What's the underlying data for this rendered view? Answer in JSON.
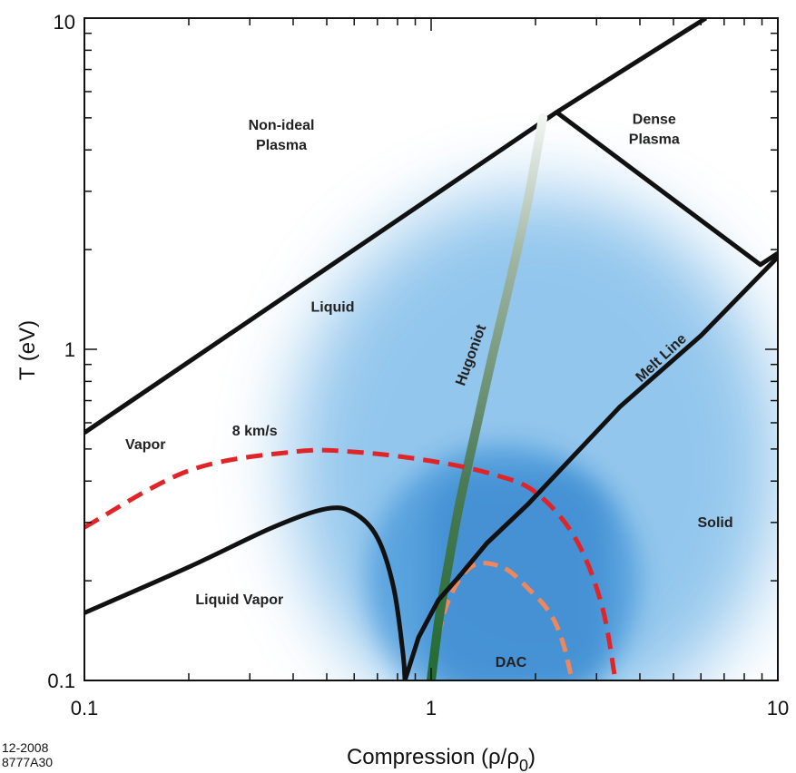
{
  "chart_data": {
    "type": "line",
    "xscale": "log",
    "yscale": "log",
    "xlim": [
      0.1,
      10
    ],
    "ylim": [
      0.1,
      10
    ],
    "xticks": [
      "0.1",
      "1",
      "10"
    ],
    "yticks": [
      "0.1",
      "1",
      "10"
    ],
    "xlabel": "Compression  (ρ/ρ",
    "xlabel_sub": "0",
    "xlabel_end": ")",
    "ylabel": "T  (eV)",
    "grid": false,
    "regions": [
      {
        "label": "Non-ideal",
        "label2": "Plasma",
        "x": 0.37,
        "y": 4.6
      },
      {
        "label": "Dense",
        "label2": "Plasma",
        "x": 4.4,
        "y": 4.8
      },
      {
        "label": "Liquid",
        "x": 0.52,
        "y": 1.3
      },
      {
        "label": "Vapor",
        "x": 0.15,
        "y": 0.5
      },
      {
        "label": "Solid",
        "x": 6.6,
        "y": 0.29
      },
      {
        "label": "Liquid Vapor",
        "x": 0.28,
        "y": 0.17
      },
      {
        "label": "DAC",
        "x": 1.7,
        "y": 0.11
      }
    ],
    "series": [
      {
        "name": "Hugoniot",
        "color": "#2e6b3a",
        "x": [
          1.0,
          1.05,
          1.1,
          1.2,
          1.35,
          1.5,
          1.7,
          1.9,
          2.1
        ],
        "y": [
          0.1,
          0.15,
          0.2,
          0.33,
          0.58,
          0.95,
          1.65,
          2.8,
          5.0
        ]
      },
      {
        "name": "Melt Line",
        "color": "#111111",
        "x": [
          0.84,
          0.92,
          1.05,
          1.2,
          1.45,
          1.9,
          2.2,
          3.5,
          6.0,
          10.0
        ],
        "y": [
          0.1,
          0.135,
          0.175,
          0.205,
          0.26,
          0.34,
          0.4,
          0.67,
          1.1,
          1.9
        ]
      },
      {
        "name": "8 km/s",
        "color": "#e02428",
        "x": [
          0.1,
          0.2,
          0.4,
          0.6,
          1.0,
          1.5,
          2.0,
          2.6,
          3.1,
          3.4
        ],
        "y": [
          0.29,
          0.43,
          0.49,
          0.49,
          0.46,
          0.42,
          0.37,
          0.27,
          0.17,
          0.1
        ]
      }
    ],
    "boundaries": [
      {
        "id": "upper-boundary",
        "x": [
          0.1,
          2.3,
          6.2
        ],
        "y": [
          0.56,
          5.2,
          10.0
        ]
      },
      {
        "id": "dense-plasma-boundary",
        "x": [
          2.3,
          8.9,
          10.0
        ],
        "y": [
          5.2,
          1.8,
          1.95
        ]
      },
      {
        "id": "coexistence-dome",
        "x": [
          0.1,
          0.2,
          0.35,
          0.5,
          0.6,
          0.7,
          0.78,
          0.83,
          0.84
        ],
        "y": [
          0.16,
          0.22,
          0.29,
          0.33,
          0.32,
          0.27,
          0.19,
          0.12,
          0.1
        ]
      },
      {
        "id": "dac-boundary",
        "x": [
          1.0,
          1.1,
          1.3,
          1.6,
          1.9,
          2.2,
          2.4,
          2.55
        ],
        "y": [
          0.1,
          0.165,
          0.22,
          0.22,
          0.19,
          0.16,
          0.13,
          0.1
        ]
      }
    ],
    "colors": {
      "region_fill": "#2e8fd9",
      "dac_fill": "#2f7ec8",
      "dac_line": "#f0865c",
      "hugoniot_top": "#e6efe8"
    }
  },
  "footer": {
    "line1": "12-2008",
    "line2": "8777A30"
  }
}
